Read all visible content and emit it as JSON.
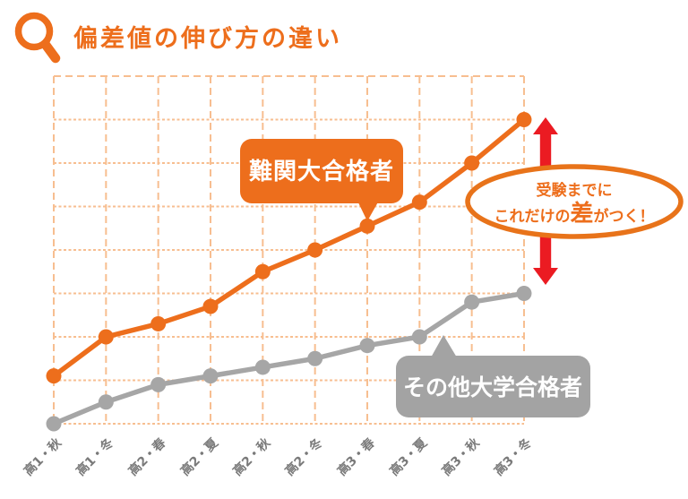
{
  "header": {
    "title": "偏差値の伸び方の違い",
    "icon": "magnifier-icon",
    "accent_color": "#ED6E1C"
  },
  "chart_data": {
    "type": "line",
    "categories": [
      "高1・秋",
      "高1・冬",
      "高2・春",
      "高2・夏",
      "高2・秋",
      "高2・冬",
      "高3・春",
      "高3・夏",
      "高3・秋",
      "高3・冬"
    ],
    "series": [
      {
        "name": "難関大合格者",
        "color": "#ED6E1C",
        "values": [
          1.1,
          2.0,
          2.3,
          2.7,
          3.5,
          4.0,
          4.55,
          5.1,
          6.0,
          7.0
        ]
      },
      {
        "name": "その他大学合格者",
        "color": "#A6A6A6",
        "values": [
          0,
          0.5,
          0.9,
          1.1,
          1.3,
          1.5,
          1.8,
          2.0,
          2.8,
          3.0
        ]
      }
    ],
    "title": "偏差値の伸び方の違い",
    "xlabel": "",
    "ylabel": "",
    "ylim": [
      0,
      8
    ],
    "x_count": 10,
    "grid": "dashed orange grid, no numeric y ticks",
    "legend_position": "labels drawn as speech-bubble badges on the lines"
  },
  "annotations": {
    "hard_badge_label": "難関大合格者",
    "other_badge_label": "その他大学合格者",
    "callout": {
      "line1": "受験までに",
      "line2_pre": "これだけの",
      "line2_emph": "差",
      "line2_post": "がつく！"
    },
    "arrow_color": "#EB1B22"
  },
  "colors": {
    "accent_orange": "#ED6E1C",
    "ellipse_border": "#E8731A",
    "grid_line": "#F7BE90",
    "gray_series": "#A6A6A6",
    "gray_badge": "#A3A3A3",
    "axis_label": "#7A7A7A",
    "red_arrow": "#EB1B22",
    "background": "#FFFFFF"
  }
}
